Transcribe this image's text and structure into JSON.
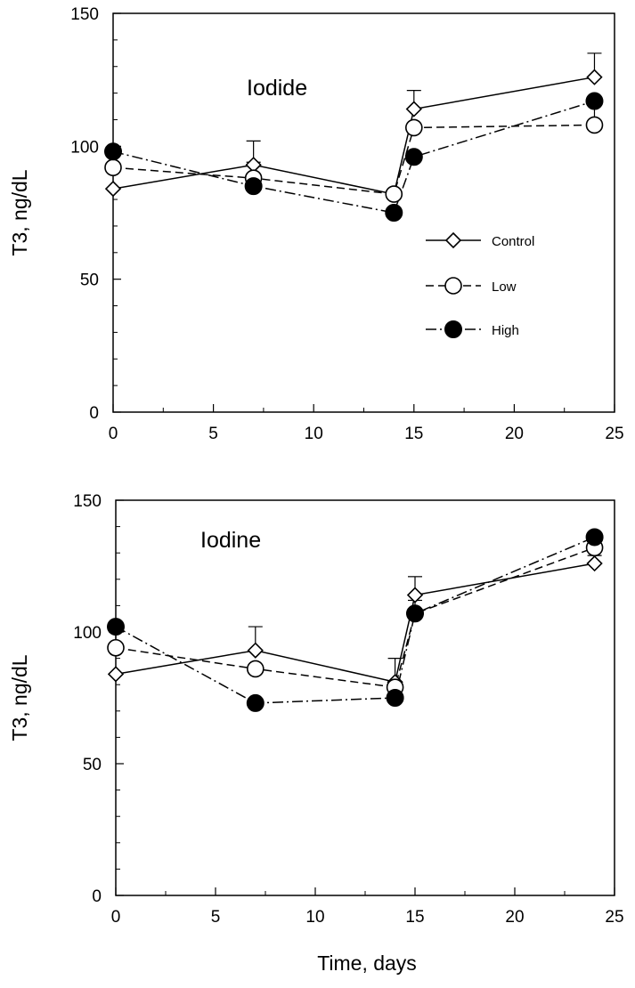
{
  "figure": {
    "xlabel": "Time, days"
  },
  "chart_data": [
    {
      "type": "line",
      "title": "Iodide",
      "ylabel": "T3, ng/dL",
      "xlim": [
        0,
        25
      ],
      "ylim": [
        0,
        150
      ],
      "xticks": [
        0,
        5,
        10,
        15,
        20,
        25
      ],
      "yticks": [
        0,
        50,
        100,
        150
      ],
      "grid": false,
      "legend": "inside-right",
      "series": [
        {
          "name": "Control",
          "marker": "diamond",
          "line": "solid",
          "x": [
            0,
            7,
            14,
            15,
            24
          ],
          "y": [
            84,
            93,
            82,
            114,
            126
          ],
          "err": [
            0,
            9,
            0,
            7,
            9
          ]
        },
        {
          "name": "Low",
          "marker": "open-circle",
          "line": "dashed",
          "x": [
            0,
            7,
            14,
            15,
            24
          ],
          "y": [
            92,
            88,
            82,
            107,
            108
          ],
          "err": [
            0,
            0,
            0,
            0,
            9
          ]
        },
        {
          "name": "High",
          "marker": "filled-circle",
          "line": "dash-dot",
          "x": [
            0,
            7,
            14,
            15,
            24
          ],
          "y": [
            98,
            85,
            75,
            96,
            117
          ],
          "err": [
            0,
            9,
            0,
            0,
            0
          ]
        }
      ]
    },
    {
      "type": "line",
      "title": "Iodine",
      "ylabel": "T3, ng/dL",
      "xlim": [
        0,
        25
      ],
      "ylim": [
        0,
        150
      ],
      "xticks": [
        0,
        5,
        10,
        15,
        20,
        25
      ],
      "yticks": [
        0,
        50,
        100,
        150
      ],
      "grid": false,
      "legend": "none",
      "series": [
        {
          "name": "Control",
          "marker": "diamond",
          "line": "solid",
          "x": [
            0,
            7,
            14,
            15,
            24
          ],
          "y": [
            84,
            93,
            81,
            114,
            126
          ],
          "err": [
            0,
            9,
            9,
            7,
            3
          ]
        },
        {
          "name": "Low",
          "marker": "open-circle",
          "line": "dashed",
          "x": [
            0,
            7,
            14,
            15,
            24
          ],
          "y": [
            94,
            86,
            79,
            107,
            132
          ],
          "err": [
            6,
            0,
            0,
            0,
            0
          ]
        },
        {
          "name": "High",
          "marker": "filled-circle",
          "line": "dash-dot",
          "x": [
            0,
            7,
            14,
            15,
            24
          ],
          "y": [
            102,
            73,
            75,
            107,
            136
          ],
          "err": [
            0,
            0,
            5,
            5,
            0
          ]
        }
      ]
    }
  ]
}
